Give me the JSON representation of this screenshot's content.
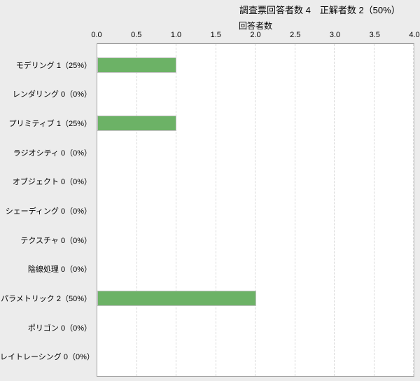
{
  "chart_data": {
    "type": "bar",
    "orientation": "horizontal",
    "title": "調査票回答者数 4　正解者数 2（50%）",
    "xlabel": "回答者数",
    "xlim": [
      0.0,
      4.0
    ],
    "x_tick_labels": [
      "0.0",
      "0.5",
      "1.0",
      "1.5",
      "2.0",
      "2.5",
      "3.0",
      "3.5",
      "4.0"
    ],
    "x_tick_values": [
      0.0,
      0.5,
      1.0,
      1.5,
      2.0,
      2.5,
      3.0,
      3.5,
      4.0
    ],
    "grid": "vertical-dashed",
    "legend": null,
    "categories": [
      "モデリング 1（25%）",
      "レンダリング 0（0%）",
      "プリミティブ 1（25%）",
      "ラジオシティ 0（0%）",
      "オブジェクト 0（0%）",
      "シェーディング 0（0%）",
      "テクスチャ 0（0%）",
      "陰線処理 0（0%）",
      "パラメトリック 2（50%）",
      "ポリゴン 0（0%）",
      "レイトレーシング 0（0%）"
    ],
    "category_names": [
      "モデリング",
      "レンダリング",
      "プリミティブ",
      "ラジオシティ",
      "オブジェクト",
      "シェーディング",
      "テクスチャ",
      "陰線処理",
      "パラメトリック",
      "ポリゴン",
      "レイトレーシング"
    ],
    "values": [
      1,
      0,
      1,
      0,
      0,
      0,
      0,
      0,
      2,
      0,
      0
    ],
    "percentages": [
      "25%",
      "0%",
      "25%",
      "0%",
      "0%",
      "0%",
      "0%",
      "0%",
      "50%",
      "0%",
      "0%"
    ],
    "respondent_total": 4,
    "correct_total": 2,
    "correct_rate": "50%"
  },
  "colors": {
    "background": "#ececec",
    "plot_background": "#ffffff",
    "bar_fill": "#6cb266",
    "bar_border": "#c3c3c3",
    "axis_top_line": "#7f7f7f",
    "plot_border": "#a5a5a5",
    "gridline": "#d9d9d9",
    "text": "#000000"
  }
}
